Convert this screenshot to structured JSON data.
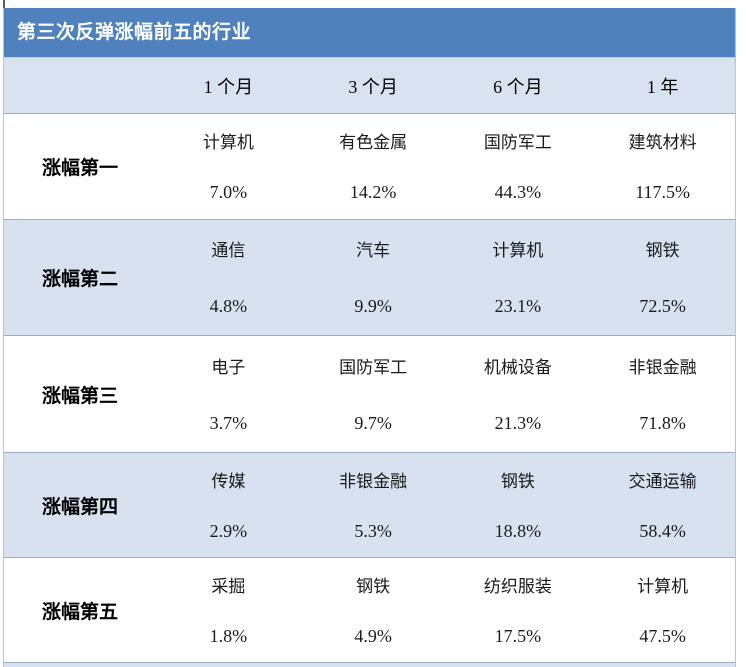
{
  "title": "第三次反弹涨幅前五的行业",
  "header": {
    "columns": [
      "1 个月",
      "3 个月",
      "6 个月",
      "1 年"
    ]
  },
  "rows": [
    {
      "label": "涨幅第一",
      "cells": [
        {
          "industry": "计算机",
          "pct": "7.0%"
        },
        {
          "industry": "有色金属",
          "pct": "14.2%"
        },
        {
          "industry": "国防军工",
          "pct": "44.3%"
        },
        {
          "industry": "建筑材料",
          "pct": "117.5%"
        }
      ]
    },
    {
      "label": "涨幅第二",
      "cells": [
        {
          "industry": "通信",
          "pct": "4.8%"
        },
        {
          "industry": "汽车",
          "pct": "9.9%"
        },
        {
          "industry": "计算机",
          "pct": "23.1%"
        },
        {
          "industry": "钢铁",
          "pct": "72.5%"
        }
      ]
    },
    {
      "label": "涨幅第三",
      "cells": [
        {
          "industry": "电子",
          "pct": "3.7%"
        },
        {
          "industry": "国防军工",
          "pct": "9.7%"
        },
        {
          "industry": "机械设备",
          "pct": "21.3%"
        },
        {
          "industry": "非银金融",
          "pct": "71.8%"
        }
      ]
    },
    {
      "label": "涨幅第四",
      "cells": [
        {
          "industry": "传媒",
          "pct": "2.9%"
        },
        {
          "industry": "非银金融",
          "pct": "5.3%"
        },
        {
          "industry": "钢铁",
          "pct": "18.8%"
        },
        {
          "industry": "交通运输",
          "pct": "58.4%"
        }
      ]
    },
    {
      "label": "涨幅第五",
      "cells": [
        {
          "industry": "采掘",
          "pct": "1.8%"
        },
        {
          "industry": "钢铁",
          "pct": "4.9%"
        },
        {
          "industry": "纺织服装",
          "pct": "17.5%"
        },
        {
          "industry": "计算机",
          "pct": "47.5%"
        }
      ]
    }
  ],
  "colors": {
    "title_bar": "#4f81bd",
    "title_text": "#ffffff",
    "header_bg": "#d9e2f1",
    "row_alt_bg": "#d7e1f0",
    "row_base_bg": "#ffffff",
    "row_border": "#9cadc4",
    "text": "#1a1a1a"
  },
  "chart_data": {
    "type": "table",
    "title": "第三次反弹涨幅前五的行业",
    "columns": [
      "1 个月",
      "3 个月",
      "6 个月",
      "1 年"
    ],
    "row_labels": [
      "涨幅第一",
      "涨幅第二",
      "涨幅第三",
      "涨幅第四",
      "涨幅第五"
    ],
    "cells": [
      [
        [
          "计算机",
          7.0
        ],
        [
          "有色金属",
          14.2
        ],
        [
          "国防军工",
          44.3
        ],
        [
          "建筑材料",
          117.5
        ]
      ],
      [
        [
          "通信",
          4.8
        ],
        [
          "汽车",
          9.9
        ],
        [
          "计算机",
          23.1
        ],
        [
          "钢铁",
          72.5
        ]
      ],
      [
        [
          "电子",
          3.7
        ],
        [
          "国防军工",
          9.7
        ],
        [
          "机械设备",
          21.3
        ],
        [
          "非银金融",
          71.8
        ]
      ],
      [
        [
          "传媒",
          2.9
        ],
        [
          "非银金融",
          5.3
        ],
        [
          "钢铁",
          18.8
        ],
        [
          "交通运输",
          58.4
        ]
      ],
      [
        [
          "采掘",
          1.8
        ],
        [
          "钢铁",
          4.9
        ],
        [
          "纺织服装",
          17.5
        ],
        [
          "计算机",
          47.5
        ]
      ]
    ],
    "cell_value_unit": "percent_gain",
    "layout": {
      "striped": true,
      "header_position": "top",
      "row_label_position": "left"
    }
  }
}
